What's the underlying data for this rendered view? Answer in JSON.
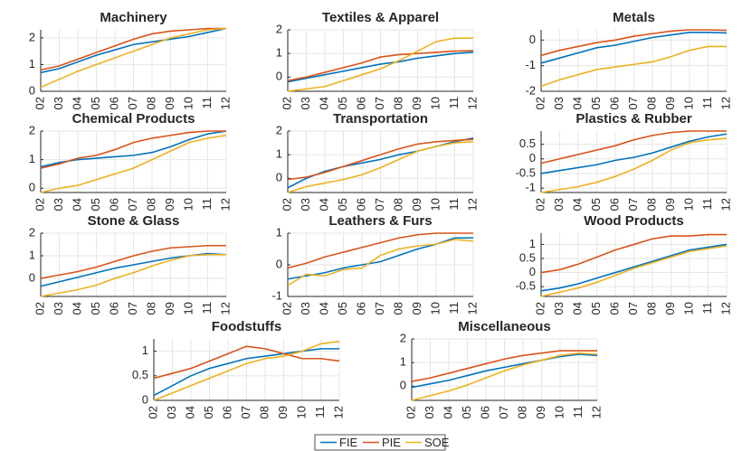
{
  "chart_data": [
    {
      "type": "line",
      "title": "Machinery",
      "categories": [
        "02",
        "03",
        "04",
        "05",
        "06",
        "07",
        "08",
        "09",
        "10",
        "11",
        "12"
      ],
      "ylim": [
        0,
        2.3
      ],
      "yticks": [
        0,
        1,
        2
      ],
      "grid": true,
      "series": [
        {
          "name": "FIE",
          "color": "#0072BD",
          "values": [
            0.7,
            0.85,
            1.1,
            1.35,
            1.55,
            1.75,
            1.85,
            1.95,
            2.05,
            2.2,
            2.35
          ]
        },
        {
          "name": "PIE",
          "color": "#D95319",
          "values": [
            0.8,
            0.95,
            1.2,
            1.45,
            1.7,
            1.95,
            2.15,
            2.25,
            2.3,
            2.35,
            2.35
          ]
        },
        {
          "name": "SOE",
          "color": "#EDB120",
          "values": [
            0.15,
            0.45,
            0.75,
            1.0,
            1.25,
            1.5,
            1.75,
            2.0,
            2.15,
            2.3,
            2.35
          ]
        }
      ]
    },
    {
      "type": "line",
      "title": "Textiles & Apparel",
      "categories": [
        "02",
        "03",
        "04",
        "05",
        "06",
        "07",
        "08",
        "09",
        "10",
        "11",
        "12"
      ],
      "ylim": [
        -0.6,
        2
      ],
      "yticks": [
        0,
        1,
        2
      ],
      "grid": true,
      "series": [
        {
          "name": "FIE",
          "color": "#0072BD",
          "values": [
            -0.2,
            -0.05,
            0.1,
            0.25,
            0.4,
            0.55,
            0.65,
            0.8,
            0.9,
            1.0,
            1.05
          ]
        },
        {
          "name": "PIE",
          "color": "#D95319",
          "values": [
            -0.15,
            0.0,
            0.2,
            0.4,
            0.6,
            0.85,
            0.95,
            1.0,
            1.05,
            1.1,
            1.12
          ]
        },
        {
          "name": "SOE",
          "color": "#EDB120",
          "values": [
            -0.6,
            -0.5,
            -0.4,
            -0.15,
            0.1,
            0.35,
            0.7,
            1.1,
            1.5,
            1.65,
            1.65
          ]
        }
      ]
    },
    {
      "type": "line",
      "title": "Metals",
      "categories": [
        "02",
        "03",
        "04",
        "05",
        "06",
        "07",
        "08",
        "09",
        "10",
        "11",
        "12"
      ],
      "ylim": [
        -2,
        0.4
      ],
      "yticks": [
        -2,
        -1,
        0
      ],
      "grid": true,
      "series": [
        {
          "name": "FIE",
          "color": "#0072BD",
          "values": [
            -0.9,
            -0.7,
            -0.5,
            -0.3,
            -0.2,
            -0.05,
            0.1,
            0.2,
            0.3,
            0.3,
            0.28
          ]
        },
        {
          "name": "PIE",
          "color": "#D95319",
          "values": [
            -0.6,
            -0.4,
            -0.25,
            -0.1,
            0.0,
            0.15,
            0.25,
            0.35,
            0.4,
            0.4,
            0.38
          ]
        },
        {
          "name": "SOE",
          "color": "#EDB120",
          "values": [
            -1.8,
            -1.55,
            -1.35,
            -1.15,
            -1.05,
            -0.95,
            -0.85,
            -0.65,
            -0.4,
            -0.25,
            -0.25
          ]
        }
      ]
    },
    {
      "type": "line",
      "title": "Chemical Products",
      "categories": [
        "02",
        "03",
        "04",
        "05",
        "06",
        "07",
        "08",
        "09",
        "10",
        "11",
        "12"
      ],
      "ylim": [
        -0.15,
        2
      ],
      "yticks": [
        0,
        1,
        2
      ],
      "grid": true,
      "series": [
        {
          "name": "FIE",
          "color": "#0072BD",
          "values": [
            0.75,
            0.9,
            1.0,
            1.05,
            1.1,
            1.15,
            1.25,
            1.45,
            1.7,
            1.9,
            2.0
          ]
        },
        {
          "name": "PIE",
          "color": "#D95319",
          "values": [
            0.7,
            0.85,
            1.05,
            1.15,
            1.35,
            1.6,
            1.75,
            1.85,
            1.95,
            2.0,
            2.0
          ]
        },
        {
          "name": "SOE",
          "color": "#EDB120",
          "values": [
            -0.15,
            0.0,
            0.1,
            0.3,
            0.5,
            0.7,
            1.0,
            1.3,
            1.6,
            1.75,
            1.85
          ]
        }
      ]
    },
    {
      "type": "line",
      "title": "Transportation",
      "categories": [
        "02",
        "03",
        "04",
        "05",
        "06",
        "07",
        "08",
        "09",
        "10",
        "11",
        "12"
      ],
      "ylim": [
        -0.6,
        2
      ],
      "yticks": [
        0,
        1,
        2
      ],
      "grid": true,
      "series": [
        {
          "name": "FIE",
          "color": "#0072BD",
          "values": [
            -0.4,
            0.0,
            0.3,
            0.5,
            0.65,
            0.8,
            1.0,
            1.15,
            1.35,
            1.55,
            1.7
          ]
        },
        {
          "name": "PIE",
          "color": "#D95319",
          "values": [
            -0.05,
            0.05,
            0.25,
            0.5,
            0.75,
            1.0,
            1.25,
            1.45,
            1.55,
            1.6,
            1.65
          ]
        },
        {
          "name": "SOE",
          "color": "#EDB120",
          "values": [
            -0.6,
            -0.35,
            -0.2,
            -0.05,
            0.15,
            0.45,
            0.8,
            1.15,
            1.35,
            1.5,
            1.55
          ]
        }
      ]
    },
    {
      "type": "line",
      "title": "Plastics & Rubber",
      "categories": [
        "02",
        "03",
        "04",
        "05",
        "06",
        "07",
        "08",
        "09",
        "10",
        "11",
        "12"
      ],
      "ylim": [
        -1.15,
        0.95
      ],
      "yticks": [
        -1,
        -0.5,
        0,
        0.5
      ],
      "grid": true,
      "series": [
        {
          "name": "FIE",
          "color": "#0072BD",
          "values": [
            -0.5,
            -0.4,
            -0.3,
            -0.2,
            -0.05,
            0.05,
            0.2,
            0.4,
            0.6,
            0.75,
            0.85
          ]
        },
        {
          "name": "PIE",
          "color": "#D95319",
          "values": [
            -0.15,
            0.0,
            0.15,
            0.3,
            0.45,
            0.65,
            0.8,
            0.9,
            0.95,
            0.95,
            0.95
          ]
        },
        {
          "name": "SOE",
          "color": "#EDB120",
          "values": [
            -1.15,
            -1.05,
            -0.95,
            -0.8,
            -0.6,
            -0.35,
            -0.05,
            0.3,
            0.55,
            0.65,
            0.7
          ]
        }
      ]
    },
    {
      "type": "line",
      "title": "Stone & Glass",
      "categories": [
        "02",
        "03",
        "04",
        "05",
        "06",
        "07",
        "08",
        "09",
        "10",
        "11",
        "12"
      ],
      "ylim": [
        -0.8,
        2
      ],
      "yticks": [
        0,
        1,
        2
      ],
      "grid": true,
      "series": [
        {
          "name": "FIE",
          "color": "#0072BD",
          "values": [
            -0.35,
            -0.15,
            0.05,
            0.25,
            0.45,
            0.6,
            0.75,
            0.9,
            1.0,
            1.1,
            1.05
          ]
        },
        {
          "name": "PIE",
          "color": "#D95319",
          "values": [
            0.0,
            0.15,
            0.3,
            0.5,
            0.75,
            1.0,
            1.2,
            1.35,
            1.4,
            1.45,
            1.45
          ]
        },
        {
          "name": "SOE",
          "color": "#EDB120",
          "values": [
            -0.8,
            -0.65,
            -0.5,
            -0.3,
            0.0,
            0.25,
            0.55,
            0.8,
            1.0,
            1.05,
            1.05
          ]
        }
      ]
    },
    {
      "type": "line",
      "title": "Leathers & Furs",
      "categories": [
        "02",
        "03",
        "04",
        "05",
        "06",
        "07",
        "08",
        "09",
        "10",
        "11",
        "12"
      ],
      "ylim": [
        -1,
        1
      ],
      "yticks": [
        -1,
        0,
        1
      ],
      "grid": true,
      "series": [
        {
          "name": "FIE",
          "color": "#0072BD",
          "values": [
            -0.45,
            -0.35,
            -0.25,
            -0.1,
            0.0,
            0.1,
            0.3,
            0.5,
            0.65,
            0.85,
            0.85
          ]
        },
        {
          "name": "PIE",
          "color": "#D95319",
          "values": [
            -0.1,
            0.05,
            0.25,
            0.4,
            0.55,
            0.7,
            0.85,
            0.95,
            1.0,
            1.0,
            1.0
          ]
        },
        {
          "name": "SOE",
          "color": "#EDB120",
          "values": [
            -0.65,
            -0.3,
            -0.35,
            -0.15,
            -0.1,
            0.3,
            0.5,
            0.6,
            0.65,
            0.8,
            0.75
          ]
        }
      ]
    },
    {
      "type": "line",
      "title": "Wood Products",
      "categories": [
        "02",
        "03",
        "04",
        "05",
        "06",
        "07",
        "08",
        "09",
        "10",
        "11",
        "12"
      ],
      "ylim": [
        -0.85,
        1.4
      ],
      "yticks": [
        -0.5,
        0,
        0.5,
        1
      ],
      "grid": true,
      "series": [
        {
          "name": "FIE",
          "color": "#0072BD",
          "values": [
            -0.65,
            -0.55,
            -0.4,
            -0.2,
            0.0,
            0.2,
            0.4,
            0.6,
            0.8,
            0.9,
            1.0
          ]
        },
        {
          "name": "PIE",
          "color": "#D95319",
          "values": [
            0.0,
            0.1,
            0.3,
            0.55,
            0.8,
            1.0,
            1.2,
            1.3,
            1.3,
            1.35,
            1.35
          ]
        },
        {
          "name": "SOE",
          "color": "#EDB120",
          "values": [
            -0.85,
            -0.7,
            -0.55,
            -0.35,
            -0.1,
            0.15,
            0.35,
            0.55,
            0.75,
            0.85,
            0.95
          ]
        }
      ]
    },
    {
      "type": "line",
      "title": "Foodstuffs",
      "categories": [
        "02",
        "03",
        "04",
        "05",
        "06",
        "07",
        "08",
        "09",
        "10",
        "11",
        "12"
      ],
      "ylim": [
        0,
        1.25
      ],
      "yticks": [
        0,
        0.5,
        1
      ],
      "grid": true,
      "series": [
        {
          "name": "FIE",
          "color": "#0072BD",
          "values": [
            0.1,
            0.3,
            0.5,
            0.65,
            0.75,
            0.85,
            0.9,
            0.95,
            1.0,
            1.05,
            1.05
          ]
        },
        {
          "name": "PIE",
          "color": "#D95319",
          "values": [
            0.45,
            0.55,
            0.65,
            0.8,
            0.95,
            1.1,
            1.05,
            0.95,
            0.85,
            0.85,
            0.8
          ]
        },
        {
          "name": "SOE",
          "color": "#EDB120",
          "values": [
            0.0,
            0.15,
            0.3,
            0.45,
            0.6,
            0.75,
            0.85,
            0.9,
            1.0,
            1.15,
            1.2
          ]
        }
      ]
    },
    {
      "type": "line",
      "title": "Miscellaneous",
      "categories": [
        "02",
        "03",
        "04",
        "05",
        "06",
        "07",
        "08",
        "09",
        "10",
        "11",
        "12"
      ],
      "ylim": [
        -0.6,
        2
      ],
      "yticks": [
        0,
        1,
        2
      ],
      "grid": true,
      "series": [
        {
          "name": "FIE",
          "color": "#0072BD",
          "values": [
            -0.05,
            0.1,
            0.25,
            0.45,
            0.65,
            0.8,
            0.95,
            1.1,
            1.25,
            1.35,
            1.3
          ]
        },
        {
          "name": "PIE",
          "color": "#D95319",
          "values": [
            0.2,
            0.35,
            0.55,
            0.75,
            0.95,
            1.15,
            1.3,
            1.4,
            1.5,
            1.5,
            1.5
          ]
        },
        {
          "name": "SOE",
          "color": "#EDB120",
          "values": [
            -0.6,
            -0.4,
            -0.2,
            0.05,
            0.35,
            0.65,
            0.9,
            1.1,
            1.3,
            1.4,
            1.35
          ]
        }
      ]
    }
  ]
}
